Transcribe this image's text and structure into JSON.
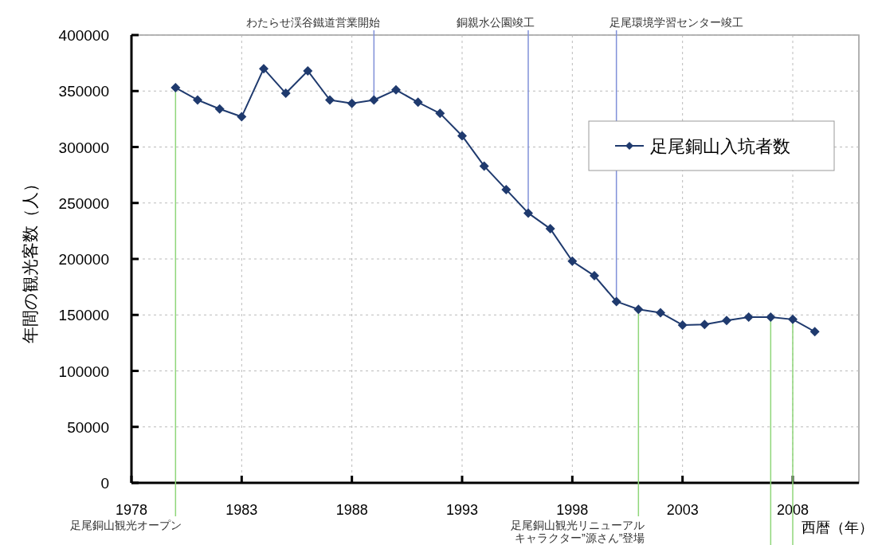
{
  "chart_data": {
    "type": "line",
    "ylabel": "年間の観光客数（人）",
    "xlabel": "西暦（年）",
    "x": [
      1980,
      1981,
      1982,
      1983,
      1984,
      1985,
      1986,
      1987,
      1988,
      1989,
      1990,
      1991,
      1992,
      1993,
      1994,
      1995,
      1996,
      1997,
      1998,
      1999,
      2000,
      2001,
      2002,
      2003,
      2004,
      2005,
      2006,
      2007,
      2008,
      2009
    ],
    "series": [
      {
        "name": "足尾銅山入坑者数",
        "color": "#1f3a6e",
        "values": [
          353000,
          342000,
          334000,
          327000,
          370000,
          348000,
          368000,
          342000,
          339000,
          342000,
          351000,
          340000,
          330000,
          310000,
          283000,
          262000,
          241000,
          227000,
          198000,
          185000,
          162000,
          155000,
          152000,
          141000,
          141500,
          145000,
          148000,
          148000,
          146000,
          135000
        ]
      }
    ],
    "xlim": [
      1978,
      2011
    ],
    "xticks": [
      1978,
      1983,
      1988,
      1993,
      1998,
      2003,
      2008
    ],
    "ylim": [
      0,
      400000
    ],
    "yticks": [
      0,
      50000,
      100000,
      150000,
      200000,
      250000,
      300000,
      350000,
      400000
    ],
    "grid": true,
    "legend": "top right",
    "marker": "diamond",
    "line_style": "solid",
    "ref_lines": [
      {
        "axis": "x",
        "value": 1989,
        "label": "わたらせ渓谷鐵道営業開始",
        "color": "#8090d8"
      },
      {
        "axis": "x",
        "value": 1996,
        "label": "銅親水公園竣工",
        "color": "#8090d8"
      },
      {
        "axis": "x",
        "value": 2000,
        "label": "足尾環境学習センター竣工",
        "color": "#8090d8"
      },
      {
        "axis": "x",
        "value": 1980,
        "label": "足尾銅山観光オープン",
        "color": "#8fd67a"
      },
      {
        "axis": "x",
        "value": 2001,
        "label": "足尾銅山観光リニューアルキャラクター”源さん”登場",
        "color": "#8fd67a"
      },
      {
        "axis": "x",
        "value": 2007,
        "label": null,
        "color": "#8fd67a"
      },
      {
        "axis": "x",
        "value": 2008,
        "label": null,
        "color": "#8fd67a"
      }
    ]
  }
}
